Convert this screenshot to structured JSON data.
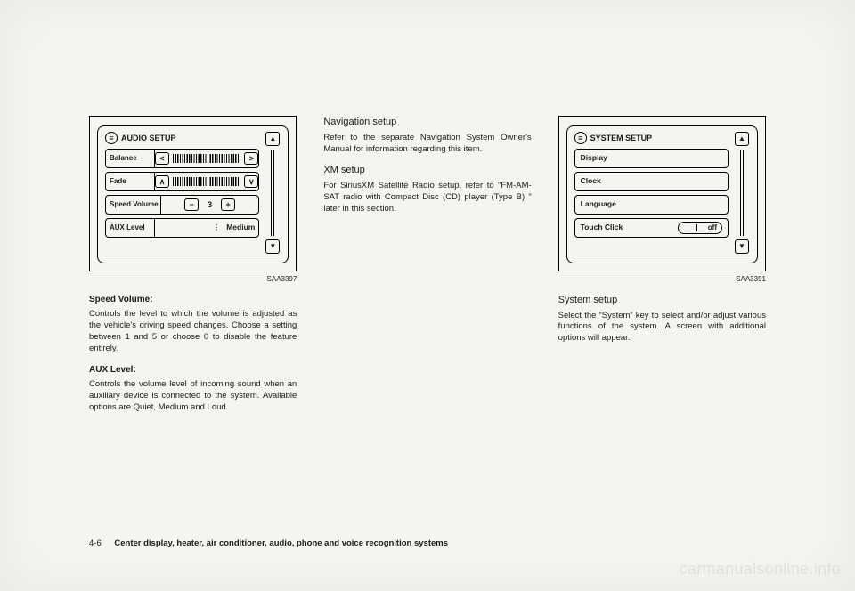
{
  "audio_setup": {
    "title": "AUDIO SETUP",
    "caption": "SAA3397",
    "rows": {
      "balance": {
        "label": "Balance"
      },
      "fade": {
        "label": "Fade"
      },
      "speed_volume": {
        "label": "Speed Volume",
        "value": "3"
      },
      "aux_level": {
        "label": "AUX Level",
        "value": "Medium"
      }
    }
  },
  "system_setup": {
    "title": "SYSTEM SETUP",
    "caption": "SAA3391",
    "rows": {
      "display": "Display",
      "clock": "Clock",
      "language": "Language",
      "touch_click": {
        "label": "Touch Click",
        "value": "off"
      }
    }
  },
  "col1": {
    "h1": "Speed Volume:",
    "p1": "Controls the level to which the volume is adjusted as the vehicle's driving speed changes. Choose a setting between 1 and 5 or choose 0 to disable the feature entirely.",
    "h2": "AUX Level:",
    "p2": "Controls the volume level of incoming sound when an auxiliary device is connected to the system. Available options are Quiet, Medium and Loud."
  },
  "col2": {
    "h1": "Navigation setup",
    "p1": "Refer to the separate Navigation System Owner's Manual for information regarding this item.",
    "h2": "XM setup",
    "p2": "For SiriusXM Satellite Radio setup, refer to “FM-AM-SAT radio with Compact Disc (CD) player (Type B) ” later in this section."
  },
  "col3": {
    "h1": "System setup",
    "p1": "Select the “System” key to select and/or adjust various functions of the system. A screen with additional options will appear."
  },
  "footer": {
    "page_num": "4-6",
    "title": "Center display, heater, air conditioner, audio, phone and voice recognition systems"
  },
  "watermark": "carmanualsonline.info"
}
